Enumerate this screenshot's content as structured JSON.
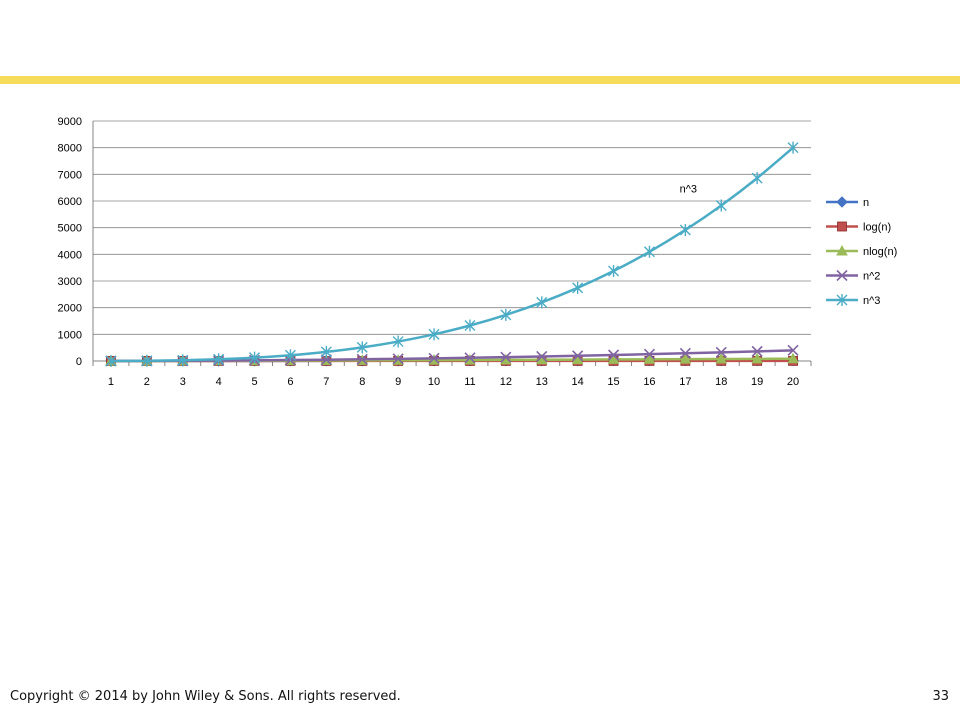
{
  "slide": {
    "copyright": "Copyright © 2014 by John Wiley & Sons.  All rights reserved.",
    "page_number": "33",
    "accent_bar_color": "#f7dc5c"
  },
  "chart_data": {
    "type": "line",
    "categories": [
      "1",
      "2",
      "3",
      "4",
      "5",
      "6",
      "7",
      "8",
      "9",
      "10",
      "11",
      "12",
      "13",
      "14",
      "15",
      "16",
      "17",
      "18",
      "19",
      "20"
    ],
    "ylim": [
      0,
      9000
    ],
    "yticks": [
      0,
      1000,
      2000,
      3000,
      4000,
      5000,
      6000,
      7000,
      8000,
      9000
    ],
    "grid": true,
    "legend_position": "right",
    "annotation": {
      "text": "n^3",
      "x": "17",
      "y": 6400
    },
    "series": [
      {
        "name": "n",
        "color": "#4472c4",
        "marker": "diamond",
        "values": [
          1,
          2,
          3,
          4,
          5,
          6,
          7,
          8,
          9,
          10,
          11,
          12,
          13,
          14,
          15,
          16,
          17,
          18,
          19,
          20
        ]
      },
      {
        "name": "log(n)",
        "color": "#c0504d",
        "marker": "square",
        "values": [
          0,
          1,
          1.58,
          2,
          2.32,
          2.58,
          2.81,
          3,
          3.17,
          3.32,
          3.46,
          3.58,
          3.7,
          3.81,
          3.91,
          4,
          4.09,
          4.17,
          4.25,
          4.32
        ]
      },
      {
        "name": "nlog(n)",
        "color": "#9bbb59",
        "marker": "triangle",
        "values": [
          0,
          2,
          4.75,
          8,
          11.61,
          15.51,
          19.65,
          24,
          28.53,
          33.22,
          38.05,
          43.02,
          48.11,
          53.3,
          58.6,
          64,
          69.49,
          75.06,
          80.71,
          86.44
        ]
      },
      {
        "name": "n^2",
        "color": "#8064a2",
        "marker": "x",
        "values": [
          1,
          4,
          9,
          16,
          25,
          36,
          49,
          64,
          81,
          100,
          121,
          144,
          169,
          196,
          225,
          256,
          289,
          324,
          361,
          400
        ]
      },
      {
        "name": "n^3",
        "color": "#4bacc6",
        "marker": "star",
        "values": [
          1,
          8,
          27,
          64,
          125,
          216,
          343,
          512,
          729,
          1000,
          1331,
          1728,
          2197,
          2744,
          3375,
          4096,
          4913,
          5832,
          6859,
          8000
        ]
      }
    ]
  }
}
